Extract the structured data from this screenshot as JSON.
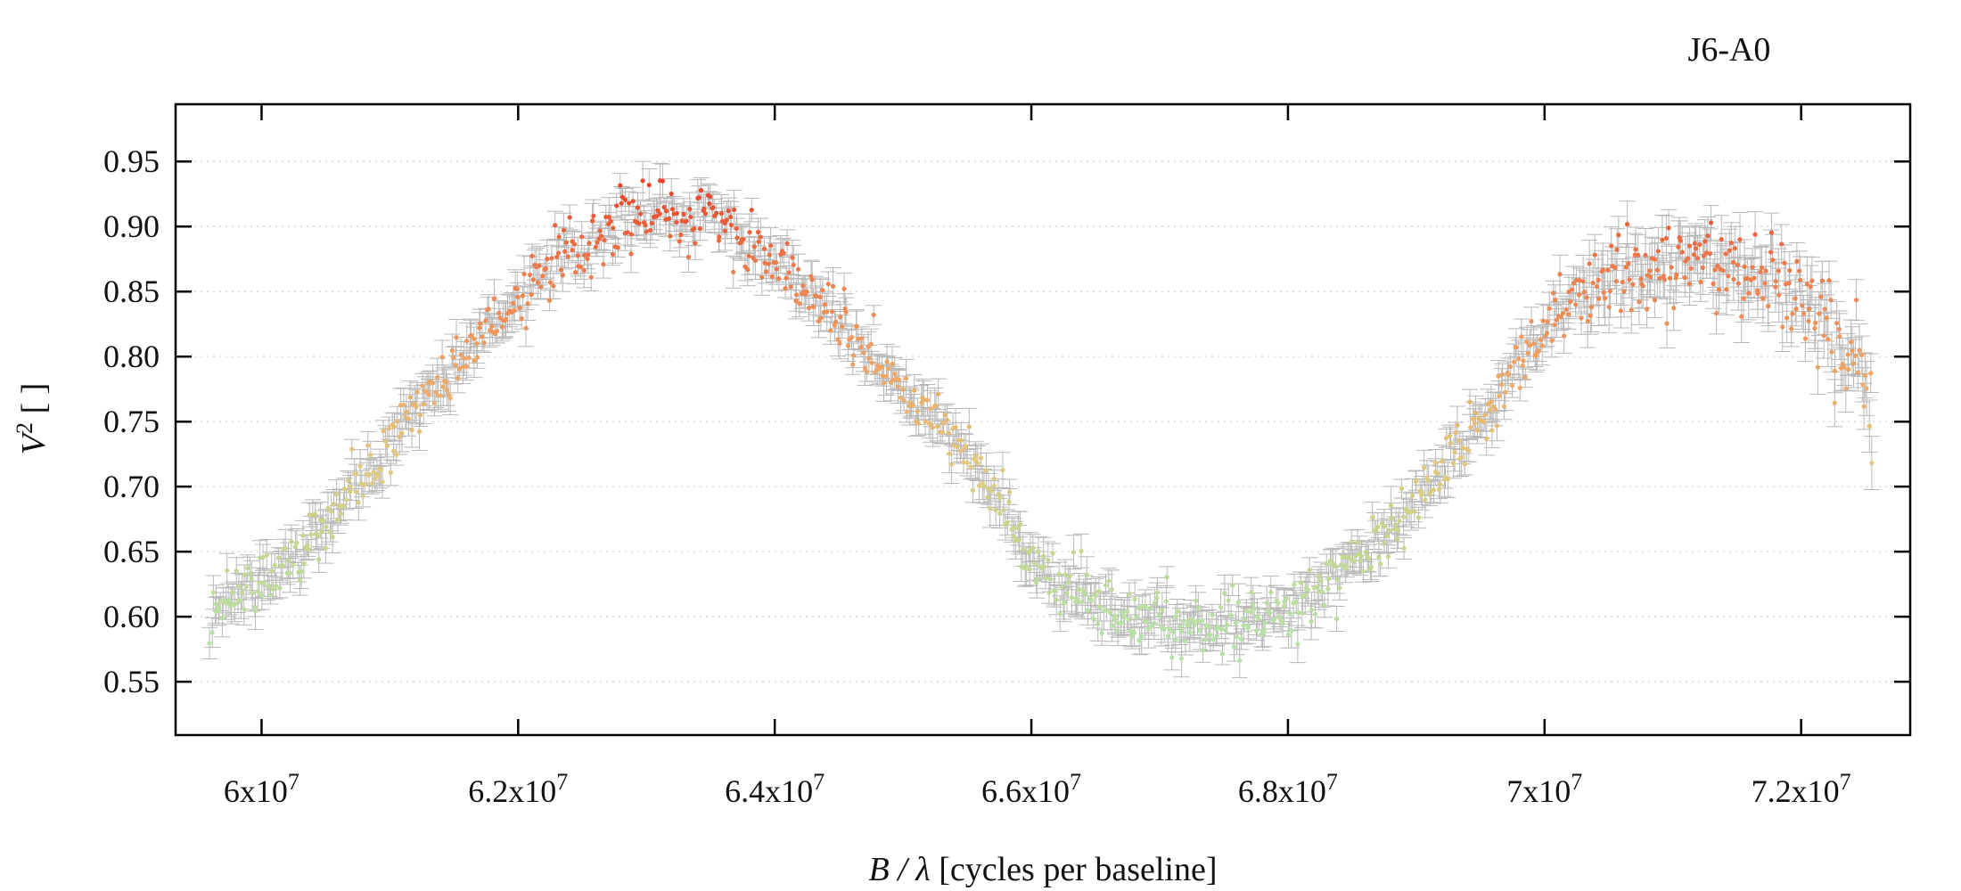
{
  "chart_data": {
    "type": "scatter",
    "title": "J6-A0",
    "xlabel": {
      "italic": "B / λ",
      "rest": " [cycles per baseline]"
    },
    "ylabel": {
      "base": "V",
      "sup": "2",
      "rest": " [ ]"
    },
    "xlim": [
      59330000,
      72850000
    ],
    "ylim": [
      0.509,
      0.994
    ],
    "grid": "horizontal dotted",
    "x_ticks": [
      {
        "value": 60000000,
        "mantissa": "6",
        "exp": "7"
      },
      {
        "value": 62000000,
        "mantissa": "6.2",
        "exp": "7"
      },
      {
        "value": 64000000,
        "mantissa": "6.4",
        "exp": "7"
      },
      {
        "value": 66000000,
        "mantissa": "6.6",
        "exp": "7"
      },
      {
        "value": 68000000,
        "mantissa": "6.8",
        "exp": "7"
      },
      {
        "value": 70000000,
        "mantissa": "7",
        "exp": "7"
      },
      {
        "value": 72000000,
        "mantissa": "7.2",
        "exp": "7"
      }
    ],
    "x_tick_base": "x10",
    "y_ticks": [
      {
        "value": 0.55,
        "label": "0.55"
      },
      {
        "value": 0.6,
        "label": "0.60"
      },
      {
        "value": 0.65,
        "label": "0.65"
      },
      {
        "value": 0.7,
        "label": "0.70"
      },
      {
        "value": 0.75,
        "label": "0.75"
      },
      {
        "value": 0.8,
        "label": "0.80"
      },
      {
        "value": 0.85,
        "label": "0.85"
      },
      {
        "value": 0.9,
        "label": "0.90"
      },
      {
        "value": 0.95,
        "label": "0.95"
      }
    ],
    "error_bar_color": "#b8b8b8",
    "color_scale": [
      {
        "v2": 0.58,
        "color": "#b4e3a8"
      },
      {
        "v2": 0.66,
        "color": "#c6d58c"
      },
      {
        "v2": 0.72,
        "color": "#e3c87e"
      },
      {
        "v2": 0.8,
        "color": "#f0a060"
      },
      {
        "v2": 0.87,
        "color": "#ee7a4a"
      },
      {
        "v2": 0.93,
        "color": "#e8452a"
      }
    ],
    "trend": [
      {
        "x": 59600000,
        "y": 0.61
      },
      {
        "x": 60000000,
        "y": 0.63
      },
      {
        "x": 60300000,
        "y": 0.65
      },
      {
        "x": 60600000,
        "y": 0.69
      },
      {
        "x": 60900000,
        "y": 0.71
      },
      {
        "x": 61200000,
        "y": 0.76
      },
      {
        "x": 61600000,
        "y": 0.805
      },
      {
        "x": 62000000,
        "y": 0.845
      },
      {
        "x": 62400000,
        "y": 0.88
      },
      {
        "x": 62800000,
        "y": 0.905
      },
      {
        "x": 63200000,
        "y": 0.91
      },
      {
        "x": 63600000,
        "y": 0.905
      },
      {
        "x": 64000000,
        "y": 0.875
      },
      {
        "x": 64400000,
        "y": 0.84
      },
      {
        "x": 64800000,
        "y": 0.79
      },
      {
        "x": 65200000,
        "y": 0.755
      },
      {
        "x": 65600000,
        "y": 0.715
      },
      {
        "x": 65900000,
        "y": 0.66
      },
      {
        "x": 66200000,
        "y": 0.625
      },
      {
        "x": 66600000,
        "y": 0.605
      },
      {
        "x": 67000000,
        "y": 0.598
      },
      {
        "x": 67400000,
        "y": 0.593
      },
      {
        "x": 67800000,
        "y": 0.598
      },
      {
        "x": 68100000,
        "y": 0.61
      },
      {
        "x": 68400000,
        "y": 0.632
      },
      {
        "x": 68800000,
        "y": 0.665
      },
      {
        "x": 69200000,
        "y": 0.715
      },
      {
        "x": 69600000,
        "y": 0.765
      },
      {
        "x": 69900000,
        "y": 0.81
      },
      {
        "x": 70100000,
        "y": 0.835
      },
      {
        "x": 70500000,
        "y": 0.862
      },
      {
        "x": 71000000,
        "y": 0.872
      },
      {
        "x": 71500000,
        "y": 0.872
      },
      {
        "x": 71800000,
        "y": 0.86
      },
      {
        "x": 72100000,
        "y": 0.838
      },
      {
        "x": 72400000,
        "y": 0.8
      },
      {
        "x": 72550000,
        "y": 0.76
      }
    ]
  }
}
